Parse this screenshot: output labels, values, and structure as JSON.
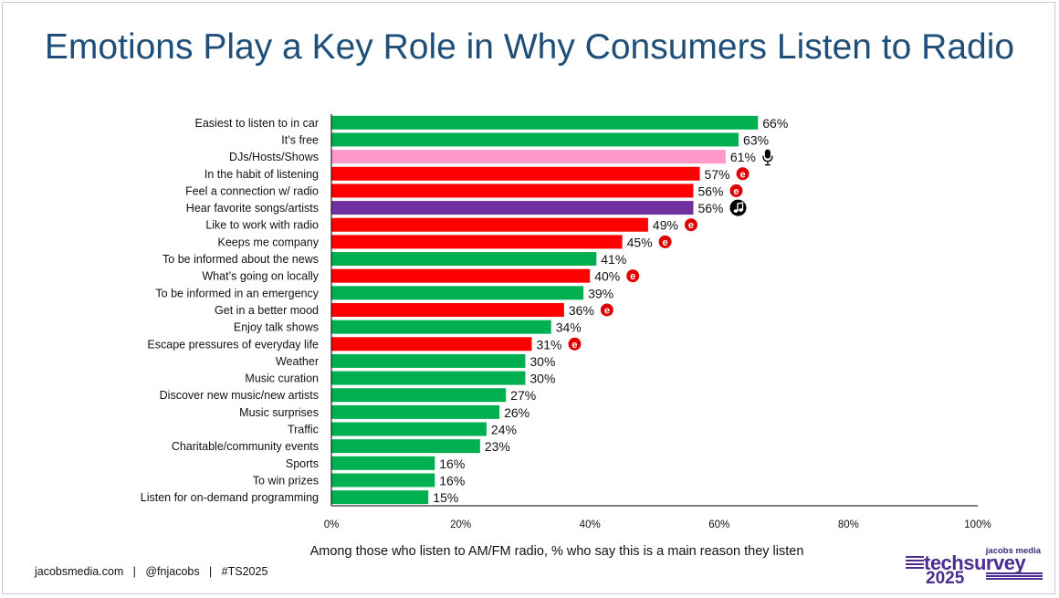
{
  "title": "Emotions Play a Key Role in Why Consumers Listen to Radio",
  "footer": "jacobsmedia.com   |   @fnjacobs   |   #TS2025",
  "logo": {
    "brand": "jacobs media",
    "product": "techsurvey",
    "year": "2025"
  },
  "colors": {
    "title": "#1f4e79",
    "functional": "#00b050",
    "emotional": "#ff0000",
    "personality": "#ff99cc",
    "music": "#7030a0"
  },
  "chart_data": {
    "type": "bar",
    "orientation": "horizontal",
    "title": "Emotions Play a Key Role in Why Consumers Listen to Radio",
    "xlabel": "Among those who listen to AM/FM radio, % who say this is a main reason they listen",
    "xlim": [
      0,
      100
    ],
    "x_ticks": [
      "0%",
      "20%",
      "40%",
      "60%",
      "80%",
      "100%"
    ],
    "categories": [
      "Easiest to listen to in car",
      "It’s free",
      "DJs/Hosts/Shows",
      "In the habit of listening",
      "Feel a connection w/ radio",
      "Hear favorite songs/artists",
      "Like to work with radio",
      "Keeps me company",
      "To be informed about the news",
      "What’s going on locally",
      "To be informed in an emergency",
      "Get in a better mood",
      "Enjoy talk shows",
      "Escape pressures of everyday life",
      "Weather",
      "Music curation",
      "Discover new music/new artists",
      "Music surprises",
      "Traffic",
      "Charitable/community events",
      "Sports",
      "To win prizes",
      "Listen for on-demand programming"
    ],
    "values": [
      66,
      63,
      61,
      57,
      56,
      56,
      49,
      45,
      41,
      40,
      39,
      36,
      34,
      31,
      30,
      30,
      27,
      26,
      24,
      23,
      16,
      16,
      15
    ],
    "data_labels": [
      "66%",
      "63%",
      "61%",
      "57%",
      "56%",
      "56%",
      "49%",
      "45%",
      "41%",
      "40%",
      "39%",
      "36%",
      "34%",
      "31%",
      "30%",
      "30%",
      "27%",
      "26%",
      "24%",
      "23%",
      "16%",
      "16%",
      "15%"
    ],
    "bar_colors": [
      "#00b050",
      "#00b050",
      "#ff99cc",
      "#ff0000",
      "#ff0000",
      "#7030a0",
      "#ff0000",
      "#ff0000",
      "#00b050",
      "#ff0000",
      "#00b050",
      "#ff0000",
      "#00b050",
      "#ff0000",
      "#00b050",
      "#00b050",
      "#00b050",
      "#00b050",
      "#00b050",
      "#00b050",
      "#00b050",
      "#00b050",
      "#00b050"
    ],
    "markers": [
      "",
      "",
      "microphone-icon",
      "emotion-e-icon",
      "emotion-e-icon",
      "music-note-icon",
      "emotion-e-icon",
      "emotion-e-icon",
      "",
      "emotion-e-icon",
      "",
      "emotion-e-icon",
      "",
      "emotion-e-icon",
      "",
      "",
      "",
      "",
      "",
      "",
      "",
      "",
      ""
    ],
    "marker_glyph": "e",
    "grid": false,
    "legend": "none"
  }
}
